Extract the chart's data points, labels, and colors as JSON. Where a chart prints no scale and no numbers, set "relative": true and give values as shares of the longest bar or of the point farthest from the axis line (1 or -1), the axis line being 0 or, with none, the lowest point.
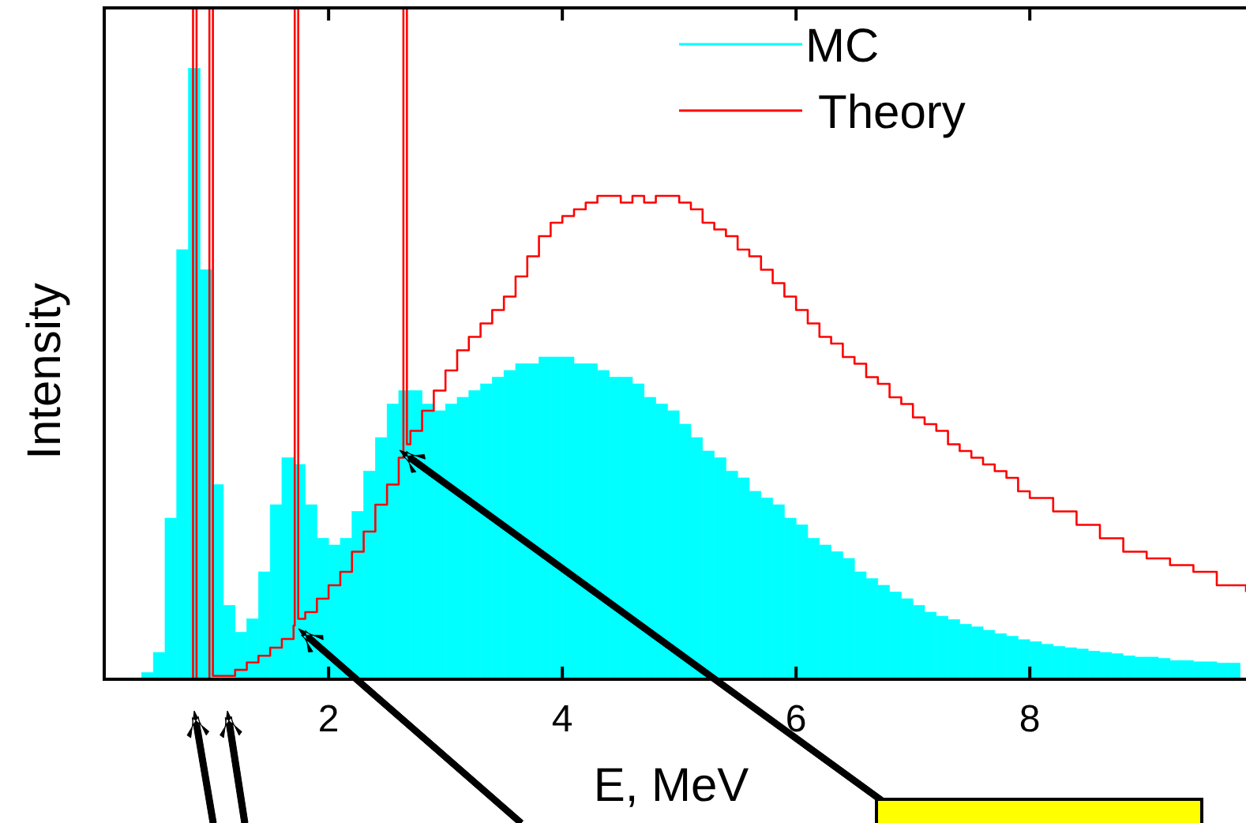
{
  "chart_data": {
    "type": "histogram",
    "xlabel": "E, MeV",
    "ylabel": "Intensity",
    "relative": true,
    "legend": "top right",
    "xlim": [
      0.08,
      9.85
    ],
    "xticks": [
      2,
      4,
      6,
      8
    ],
    "bins": [
      0.1,
      0.2,
      0.3,
      0.4,
      0.5,
      0.6,
      0.7,
      0.8,
      0.9,
      1.0,
      1.1,
      1.2,
      1.3,
      1.4,
      1.5,
      1.6,
      1.7,
      1.8,
      1.9,
      2.0,
      2.1,
      2.2,
      2.3,
      2.4,
      2.5,
      2.6,
      2.7,
      2.8,
      2.9,
      3.0,
      3.1,
      3.2,
      3.3,
      3.4,
      3.5,
      3.6,
      3.7,
      3.8,
      3.9,
      4.0,
      4.1,
      4.2,
      4.3,
      4.4,
      4.5,
      4.6,
      4.7,
      4.8,
      4.9,
      5.0,
      5.1,
      5.2,
      5.3,
      5.4,
      5.5,
      5.6,
      5.7,
      5.8,
      5.9,
      6.0,
      6.1,
      6.2,
      6.3,
      6.4,
      6.5,
      6.6,
      6.7,
      6.8,
      6.9,
      7.0,
      7.1,
      7.2,
      7.3,
      7.4,
      7.5,
      7.6,
      7.7,
      7.8,
      7.9,
      8.0,
      8.1,
      8.2,
      8.3,
      8.4,
      8.5,
      8.6,
      8.7,
      8.8,
      8.9,
      9.0,
      9.1,
      9.2,
      9.3,
      9.4,
      9.5,
      9.6,
      9.7,
      9.8
    ],
    "series": [
      {
        "name": "MC",
        "color": "#00ffff",
        "values": [
          0,
          0,
          0,
          0.01,
          0.04,
          0.24,
          0.64,
          0.91,
          0.61,
          0.29,
          0.11,
          0.07,
          0.09,
          0.16,
          0.26,
          0.33,
          0.32,
          0.26,
          0.21,
          0.2,
          0.21,
          0.25,
          0.31,
          0.36,
          0.41,
          0.43,
          0.43,
          0.41,
          0.4,
          0.41,
          0.42,
          0.43,
          0.44,
          0.45,
          0.46,
          0.47,
          0.47,
          0.48,
          0.48,
          0.48,
          0.47,
          0.47,
          0.46,
          0.45,
          0.45,
          0.44,
          0.42,
          0.41,
          0.4,
          0.38,
          0.36,
          0.34,
          0.33,
          0.31,
          0.3,
          0.28,
          0.27,
          0.26,
          0.24,
          0.23,
          0.21,
          0.2,
          0.19,
          0.18,
          0.16,
          0.15,
          0.14,
          0.13,
          0.12,
          0.11,
          0.1,
          0.094,
          0.089,
          0.082,
          0.078,
          0.073,
          0.068,
          0.064,
          0.059,
          0.056,
          0.052,
          0.049,
          0.047,
          0.045,
          0.042,
          0.04,
          0.038,
          0.035,
          0.033,
          0.033,
          0.031,
          0.028,
          0.028,
          0.026,
          0.026,
          0.024,
          0.024
        ]
      },
      {
        "name": "Theory",
        "color": "#ff0000",
        "type": "step",
        "x": [
          0.08,
          0.84,
          0.87,
          0.98,
          1.01,
          1.1,
          1.2,
          1.3,
          1.4,
          1.5,
          1.6,
          1.7,
          1.71,
          1.74,
          1.8,
          1.9,
          2.0,
          2.1,
          2.2,
          2.3,
          2.4,
          2.5,
          2.6,
          2.64,
          2.67,
          2.7,
          2.8,
          2.9,
          3.0,
          3.1,
          3.2,
          3.3,
          3.4,
          3.5,
          3.6,
          3.7,
          3.8,
          3.9,
          4.0,
          4.1,
          4.2,
          4.3,
          4.4,
          4.5,
          4.6,
          4.7,
          4.8,
          4.9,
          5.0,
          5.1,
          5.2,
          5.3,
          5.4,
          5.5,
          5.6,
          5.7,
          5.8,
          5.9,
          6.0,
          6.1,
          6.2,
          6.3,
          6.4,
          6.5,
          6.6,
          6.7,
          6.8,
          6.9,
          7.0,
          7.1,
          7.2,
          7.3,
          7.4,
          7.5,
          7.6,
          7.7,
          7.8,
          7.9,
          8.0,
          8.2,
          8.4,
          8.6,
          8.8,
          9.0,
          9.2,
          9.4,
          9.6,
          9.85
        ],
        "values": [
          0,
          1,
          0,
          1,
          0.005,
          0.005,
          0.014,
          0.025,
          0.035,
          0.047,
          0.06,
          0.08,
          1,
          0.09,
          0.1,
          0.12,
          0.14,
          0.16,
          0.19,
          0.22,
          0.26,
          0.29,
          0.33,
          1,
          0.35,
          0.37,
          0.4,
          0.43,
          0.46,
          0.49,
          0.51,
          0.53,
          0.55,
          0.57,
          0.6,
          0.63,
          0.66,
          0.68,
          0.69,
          0.7,
          0.71,
          0.72,
          0.72,
          0.71,
          0.72,
          0.71,
          0.72,
          0.72,
          0.71,
          0.7,
          0.68,
          0.67,
          0.66,
          0.64,
          0.63,
          0.61,
          0.59,
          0.57,
          0.55,
          0.53,
          0.51,
          0.5,
          0.48,
          0.47,
          0.45,
          0.44,
          0.42,
          0.41,
          0.39,
          0.38,
          0.37,
          0.35,
          0.34,
          0.33,
          0.32,
          0.31,
          0.3,
          0.28,
          0.27,
          0.25,
          0.23,
          0.21,
          0.19,
          0.18,
          0.17,
          0.16,
          0.14,
          0.13
        ]
      }
    ]
  }
}
